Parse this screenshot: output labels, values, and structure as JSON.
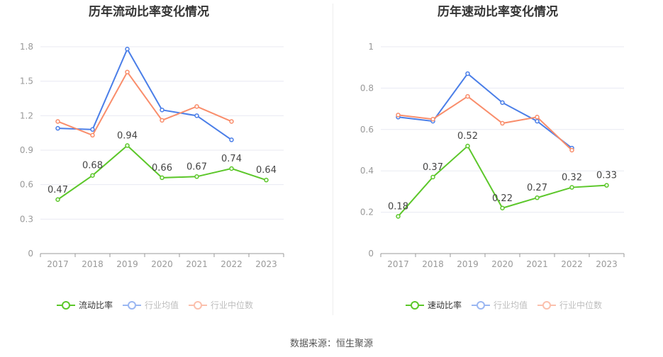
{
  "source": "数据来源：恒生聚源",
  "colors": {
    "main": "#5cc72a",
    "avg": "#4a7ee8",
    "median": "#f98d6b",
    "grid": "#e8eaf2",
    "axis": "#999999"
  },
  "chart_data": [
    {
      "type": "line",
      "title": "历年流动比率变化情况",
      "categories": [
        "2017",
        "2018",
        "2019",
        "2020",
        "2021",
        "2022",
        "2023"
      ],
      "ylim": [
        0,
        1.8
      ],
      "yticks": [
        "0",
        "0.3",
        "0.6",
        "0.9",
        "1.2",
        "1.5",
        "1.8"
      ],
      "grid": true,
      "legend_position": "bottom",
      "series": [
        {
          "name": "流动比率",
          "values": [
            0.47,
            0.68,
            0.94,
            0.66,
            0.67,
            0.74,
            0.64
          ],
          "labels": [
            "0.47",
            "0.68",
            "0.94",
            "0.66",
            "0.67",
            "0.74",
            "0.64"
          ],
          "legend_active": true
        },
        {
          "name": "行业均值",
          "values": [
            1.09,
            1.08,
            1.78,
            1.25,
            1.2,
            0.99,
            null
          ],
          "legend_active": false
        },
        {
          "name": "行业中位数",
          "values": [
            1.15,
            1.03,
            1.58,
            1.16,
            1.28,
            1.15,
            null
          ],
          "legend_active": false
        }
      ]
    },
    {
      "type": "line",
      "title": "历年速动比率变化情况",
      "categories": [
        "2017",
        "2018",
        "2019",
        "2020",
        "2021",
        "2022",
        "2023"
      ],
      "ylim": [
        0,
        1
      ],
      "yticks": [
        "0",
        "0.2",
        "0.4",
        "0.6",
        "0.8",
        "1"
      ],
      "grid": true,
      "legend_position": "bottom",
      "series": [
        {
          "name": "速动比率",
          "values": [
            0.18,
            0.37,
            0.52,
            0.22,
            0.27,
            0.32,
            0.33
          ],
          "labels": [
            "0.18",
            "0.37",
            "0.52",
            "0.22",
            "0.27",
            "0.32",
            "0.33"
          ],
          "legend_active": true
        },
        {
          "name": "行业均值",
          "values": [
            0.66,
            0.64,
            0.87,
            0.73,
            0.64,
            0.51,
            null
          ],
          "legend_active": false
        },
        {
          "name": "行业中位数",
          "values": [
            0.67,
            0.65,
            0.76,
            0.63,
            0.66,
            0.5,
            null
          ],
          "legend_active": false
        }
      ]
    }
  ]
}
